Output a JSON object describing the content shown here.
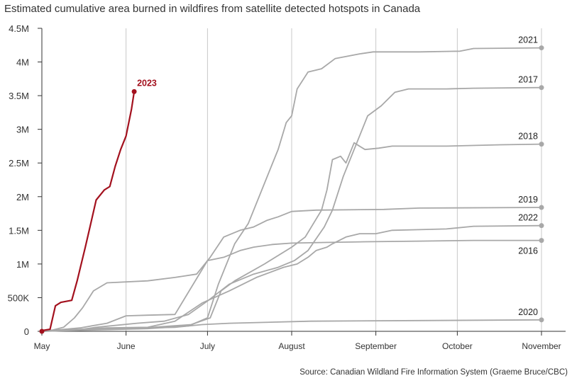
{
  "title": "Estimated cumulative area burned in wildfires from satellite detected hotspots in Canada",
  "source": "Source: Canadian Wildland Fire Information System (Graeme Bruce/CBC)",
  "colors": {
    "highlight": "#a3111e",
    "series": "#a8a8a8",
    "grid": "#c8c8c8",
    "axis": "#333333"
  },
  "chart_data": {
    "type": "line",
    "title": "Estimated cumulative area burned in wildfires from satellite detected hotspots in Canada",
    "xlabel": "",
    "ylabel": "",
    "x_unit": "day of year",
    "xlim": [
      121,
      305
    ],
    "ylim": [
      0,
      4500000
    ],
    "grid": "vertical",
    "x_ticks": [
      {
        "label": "May",
        "x": 121
      },
      {
        "label": "June",
        "x": 152
      },
      {
        "label": "July",
        "x": 182
      },
      {
        "label": "August",
        "x": 213
      },
      {
        "label": "September",
        "x": 244
      },
      {
        "label": "October",
        "x": 274
      },
      {
        "label": "November",
        "x": 305
      }
    ],
    "y_ticks": [
      {
        "label": "0",
        "y": 0
      },
      {
        "label": "500K",
        "y": 500000
      },
      {
        "label": "1M",
        "y": 1000000
      },
      {
        "label": "1.5M",
        "y": 1500000
      },
      {
        "label": "2M",
        "y": 2000000
      },
      {
        "label": "2.5M",
        "y": 2500000
      },
      {
        "label": "3M",
        "y": 3000000
      },
      {
        "label": "3.5M",
        "y": 3500000
      },
      {
        "label": "4M",
        "y": 4000000
      },
      {
        "label": "4.5M",
        "y": 4500000
      }
    ],
    "series": [
      {
        "name": "2023",
        "highlight": true,
        "label_pos": "above",
        "points": [
          [
            121,
            10000
          ],
          [
            124,
            30000
          ],
          [
            126,
            380000
          ],
          [
            128,
            430000
          ],
          [
            132,
            460000
          ],
          [
            134,
            750000
          ],
          [
            137,
            1250000
          ],
          [
            139,
            1600000
          ],
          [
            141,
            1950000
          ],
          [
            144,
            2100000
          ],
          [
            146,
            2150000
          ],
          [
            148,
            2450000
          ],
          [
            150,
            2700000
          ],
          [
            152,
            2900000
          ],
          [
            154,
            3300000
          ],
          [
            155,
            3560000
          ]
        ]
      },
      {
        "name": "2021",
        "label_pos": "above",
        "points": [
          [
            121,
            0
          ],
          [
            140,
            20000
          ],
          [
            160,
            40000
          ],
          [
            175,
            80000
          ],
          [
            182,
            200000
          ],
          [
            186,
            700000
          ],
          [
            192,
            1300000
          ],
          [
            197,
            1600000
          ],
          [
            201,
            2000000
          ],
          [
            205,
            2400000
          ],
          [
            208,
            2700000
          ],
          [
            211,
            3100000
          ],
          [
            213,
            3200000
          ],
          [
            215,
            3600000
          ],
          [
            219,
            3850000
          ],
          [
            224,
            3900000
          ],
          [
            229,
            4050000
          ],
          [
            238,
            4120000
          ],
          [
            243,
            4150000
          ],
          [
            260,
            4150000
          ],
          [
            275,
            4160000
          ],
          [
            280,
            4200000
          ],
          [
            305,
            4210000
          ]
        ]
      },
      {
        "name": "2017",
        "label_pos": "above",
        "points": [
          [
            121,
            0
          ],
          [
            134,
            20000
          ],
          [
            141,
            60000
          ],
          [
            156,
            120000
          ],
          [
            166,
            150000
          ],
          [
            175,
            250000
          ],
          [
            182,
            450000
          ],
          [
            190,
            700000
          ],
          [
            199,
            850000
          ],
          [
            208,
            950000
          ],
          [
            214,
            1050000
          ],
          [
            219,
            1200000
          ],
          [
            225,
            1550000
          ],
          [
            228,
            1800000
          ],
          [
            232,
            2300000
          ],
          [
            237,
            2800000
          ],
          [
            241,
            3200000
          ],
          [
            246,
            3350000
          ],
          [
            251,
            3550000
          ],
          [
            256,
            3600000
          ],
          [
            270,
            3600000
          ],
          [
            280,
            3610000
          ],
          [
            305,
            3620000
          ]
        ]
      },
      {
        "name": "2018",
        "label_pos": "above",
        "points": [
          [
            121,
            0
          ],
          [
            140,
            40000
          ],
          [
            162,
            60000
          ],
          [
            176,
            100000
          ],
          [
            183,
            200000
          ],
          [
            187,
            600000
          ],
          [
            192,
            750000
          ],
          [
            203,
            1000000
          ],
          [
            213,
            1250000
          ],
          [
            218,
            1400000
          ],
          [
            221,
            1600000
          ],
          [
            224,
            1800000
          ],
          [
            226,
            2100000
          ],
          [
            228,
            2550000
          ],
          [
            231,
            2600000
          ],
          [
            233,
            2500000
          ],
          [
            236,
            2800000
          ],
          [
            240,
            2700000
          ],
          [
            245,
            2720000
          ],
          [
            250,
            2750000
          ],
          [
            270,
            2750000
          ],
          [
            290,
            2770000
          ],
          [
            305,
            2780000
          ]
        ]
      },
      {
        "name": "2019",
        "label_pos": "above",
        "points": [
          [
            121,
            0
          ],
          [
            125,
            20000
          ],
          [
            129,
            60000
          ],
          [
            133,
            200000
          ],
          [
            136,
            350000
          ],
          [
            140,
            600000
          ],
          [
            145,
            720000
          ],
          [
            160,
            750000
          ],
          [
            170,
            800000
          ],
          [
            178,
            850000
          ],
          [
            183,
            1100000
          ],
          [
            188,
            1400000
          ],
          [
            194,
            1500000
          ],
          [
            199,
            1550000
          ],
          [
            204,
            1650000
          ],
          [
            208,
            1700000
          ],
          [
            213,
            1780000
          ],
          [
            222,
            1800000
          ],
          [
            247,
            1810000
          ],
          [
            260,
            1830000
          ],
          [
            305,
            1840000
          ]
        ]
      },
      {
        "name": "2022",
        "label_pos": "above",
        "points": [
          [
            121,
            0
          ],
          [
            145,
            50000
          ],
          [
            160,
            60000
          ],
          [
            170,
            150000
          ],
          [
            180,
            420000
          ],
          [
            190,
            600000
          ],
          [
            200,
            800000
          ],
          [
            210,
            950000
          ],
          [
            215,
            1000000
          ],
          [
            219,
            1100000
          ],
          [
            222,
            1200000
          ],
          [
            226,
            1250000
          ],
          [
            228,
            1300000
          ],
          [
            233,
            1400000
          ],
          [
            238,
            1450000
          ],
          [
            244,
            1450000
          ],
          [
            250,
            1500000
          ],
          [
            260,
            1510000
          ],
          [
            270,
            1520000
          ],
          [
            280,
            1560000
          ],
          [
            305,
            1570000
          ]
        ]
      },
      {
        "name": "2016",
        "label_pos": "below",
        "points": [
          [
            121,
            0
          ],
          [
            135,
            50000
          ],
          [
            145,
            120000
          ],
          [
            152,
            230000
          ],
          [
            160,
            240000
          ],
          [
            170,
            250000
          ],
          [
            182,
            1050000
          ],
          [
            188,
            1100000
          ],
          [
            194,
            1200000
          ],
          [
            199,
            1250000
          ],
          [
            206,
            1290000
          ],
          [
            213,
            1310000
          ],
          [
            225,
            1320000
          ],
          [
            240,
            1330000
          ],
          [
            260,
            1340000
          ],
          [
            280,
            1350000
          ],
          [
            305,
            1350000
          ]
        ]
      },
      {
        "name": "2020",
        "label_pos": "above",
        "points": [
          [
            121,
            0
          ],
          [
            150,
            40000
          ],
          [
            170,
            60000
          ],
          [
            180,
            100000
          ],
          [
            190,
            120000
          ],
          [
            220,
            150000
          ],
          [
            260,
            160000
          ],
          [
            305,
            170000
          ]
        ]
      }
    ]
  }
}
